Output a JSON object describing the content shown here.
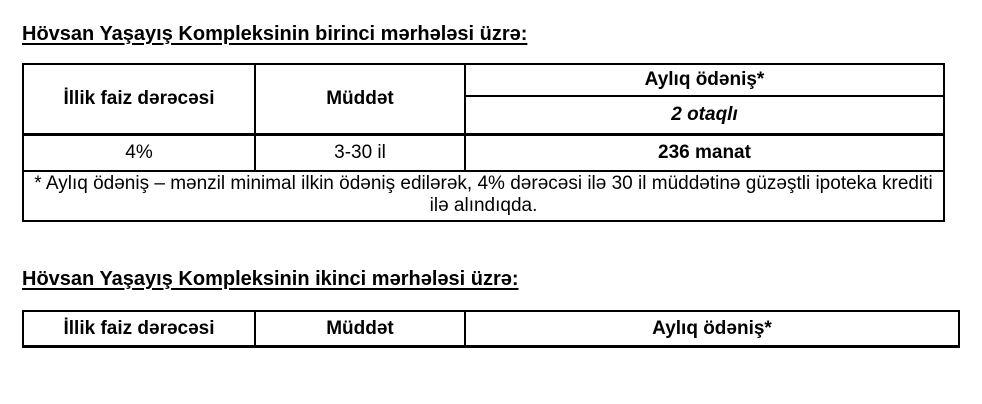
{
  "page": {
    "background_color": "#ffffff",
    "text_color": "#000000",
    "border_color": "#000000"
  },
  "section_first_phase": {
    "heading": "Hövsan Yaşayış Kompleksinin birinci mərhələsi üzrə:",
    "table": {
      "headers": {
        "rate": "İllik faiz dərəcəsi",
        "duration": "Müddət",
        "payment": "Aylıq ödəniş*",
        "payment_subheader": "2 otaqlı"
      },
      "row": {
        "rate": "4%",
        "duration": "3-30 il",
        "payment": "236 manat"
      },
      "footnote": "* Aylıq ödəniş – mənzil minimal ilkin ödəniş edilərək, 4% dərəcəsi ilə 30 il müddətinə güzəştli ipoteka krediti ilə alındıqda."
    }
  },
  "section_second_phase": {
    "heading": "Hövsan Yaşayış Kompleksinin ikinci mərhələsi üzrə:",
    "table": {
      "headers": {
        "rate": "İllik faiz dərəcəsi",
        "duration": "Müddət",
        "payment": "Aylıq ödəniş*"
      }
    }
  }
}
